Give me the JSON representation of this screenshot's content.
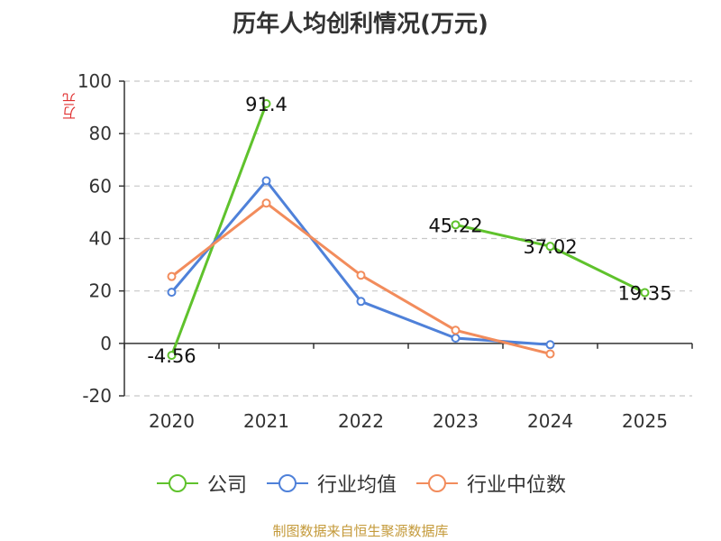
{
  "chart_data": {
    "type": "line",
    "title": "历年人均创利情况(万元)",
    "ylabel": "万元",
    "xlabel": "",
    "categories": [
      "2020",
      "2021",
      "2022",
      "2023",
      "2024",
      "2025"
    ],
    "ylim": [
      -20,
      100
    ],
    "yticks": [
      -20,
      0,
      20,
      40,
      60,
      80,
      100
    ],
    "grid": true,
    "legend_position": "bottom",
    "series": [
      {
        "name": "公司",
        "color": "#5fc22c",
        "values": [
          -4.56,
          91.4,
          null,
          45.22,
          37.02,
          19.35
        ],
        "labels": [
          "-4.56",
          "91.4",
          "",
          "45.22",
          "37.02",
          "19.35"
        ]
      },
      {
        "name": "行业均值",
        "color": "#4f81d9",
        "values": [
          19.5,
          62,
          16,
          2,
          -0.5,
          null
        ]
      },
      {
        "name": "行业中位数",
        "color": "#f28c5c",
        "values": [
          25.5,
          53.5,
          26,
          5,
          -4,
          null
        ]
      }
    ]
  },
  "source": "制图数据来自恒生聚源数据库"
}
